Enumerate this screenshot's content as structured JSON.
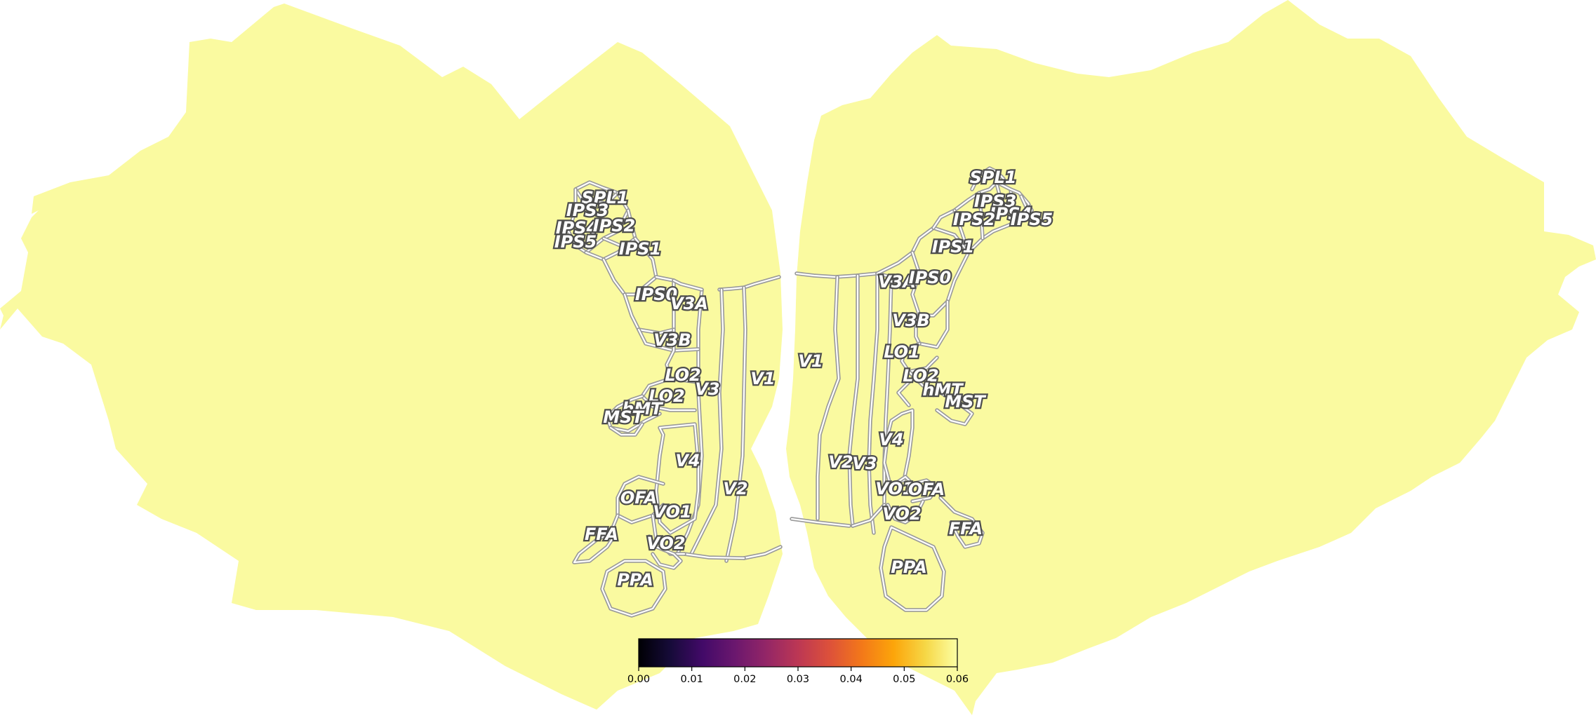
{
  "hemisphere_fill": "#fafaa0",
  "roi_outline_color": "#9a9a9a",
  "left_hemisphere": {
    "labels": [
      "SPL1",
      "IPS3",
      "IPS4",
      "IPS5",
      "IPS2",
      "IPS1",
      "IPS0",
      "V3A",
      "V3B",
      "LO2",
      "LO2",
      "hMT",
      "MST",
      "V3",
      "V1",
      "V4",
      "OFA",
      "VO1",
      "FFA",
      "VO2",
      "V2",
      "PPA"
    ]
  },
  "right_hemisphere": {
    "labels": [
      "SPL1",
      "IPS3",
      "IPS4",
      "IPS5",
      "IPS2",
      "IPS1",
      "V3A",
      "IPS0",
      "V3B",
      "LO1",
      "LO2",
      "hMT",
      "MST",
      "V1",
      "V4",
      "V2",
      "V3",
      "VO1",
      "OFA",
      "VO2",
      "FFA",
      "PPA"
    ]
  },
  "colorbar": {
    "colormap": "inferno",
    "vmin": 0.0,
    "vmax": 0.06,
    "fill_value": 0.06,
    "ticks": [
      "0.00",
      "0.01",
      "0.02",
      "0.03",
      "0.04",
      "0.05",
      "0.06"
    ]
  }
}
